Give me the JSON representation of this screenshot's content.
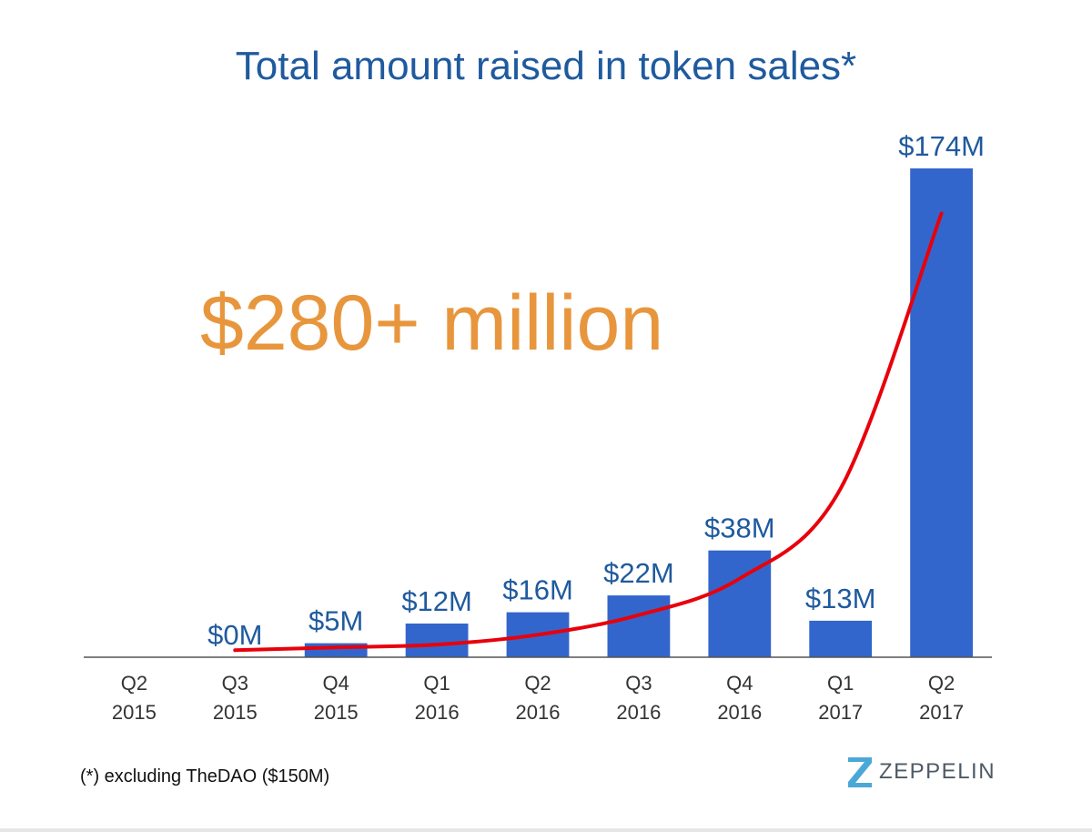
{
  "title": "Total amount raised in token sales*",
  "headline": "$280+ million",
  "footnote": "(*) excluding TheDAO ($150M)",
  "logo": {
    "icon": "zeppelin-z-logo-icon",
    "text": "ZEPPELIN"
  },
  "colors": {
    "bar": "#3366cc",
    "trend": "#e8000b",
    "title": "#1f5a9e",
    "label": "#1f5a9e",
    "headline": "#e8963d",
    "axis_text": "#333333"
  },
  "chart_data": {
    "type": "bar",
    "title": "Total amount raised in token sales*",
    "xlabel": "",
    "ylabel": "",
    "unit": "millions USD",
    "categories": [
      [
        "Q2",
        "2015"
      ],
      [
        "Q3",
        "2015"
      ],
      [
        "Q4",
        "2015"
      ],
      [
        "Q1",
        "2016"
      ],
      [
        "Q2",
        "2016"
      ],
      [
        "Q3",
        "2016"
      ],
      [
        "Q4",
        "2016"
      ],
      [
        "Q1",
        "2017"
      ],
      [
        "Q2",
        "2017"
      ]
    ],
    "values": [
      null,
      0,
      5,
      12,
      16,
      22,
      38,
      13,
      174
    ],
    "data_labels": [
      "",
      "$0M",
      "$5M",
      "$12M",
      "$16M",
      "$22M",
      "$38M",
      "$13M",
      "$174M"
    ],
    "ylim": [
      0,
      180
    ],
    "grid": false,
    "trend_line": {
      "type": "exponential",
      "color": "red",
      "x_start": "Q3 2015",
      "x_end": "Q2 2017",
      "values": [
        2.5,
        3.5,
        4.5,
        8,
        15,
        28,
        60,
        158
      ]
    }
  }
}
